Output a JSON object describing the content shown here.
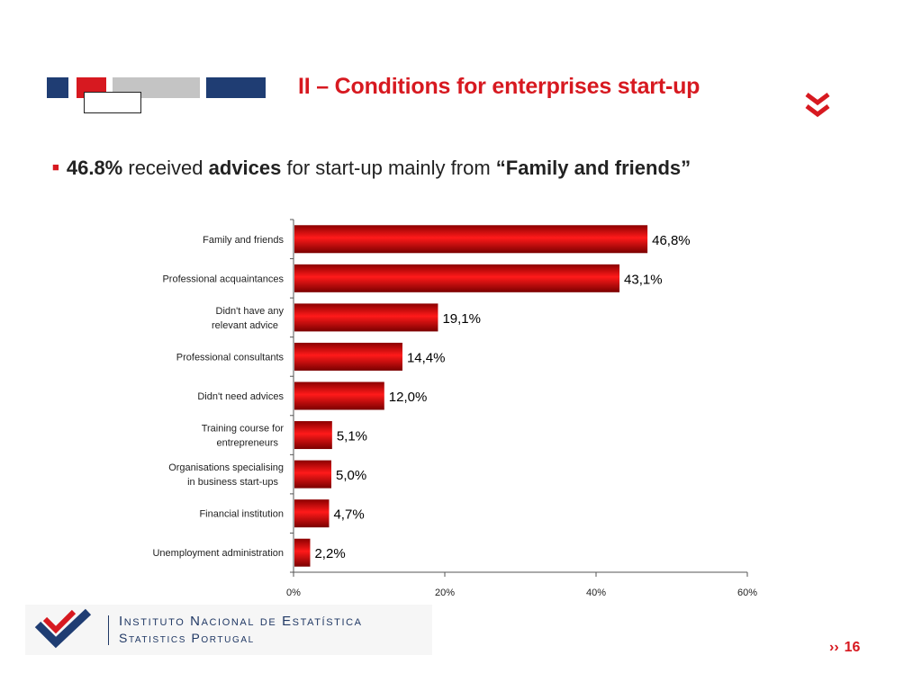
{
  "colors": {
    "accent": "#d71920",
    "navy": "#1f3d73",
    "bar_dark": "#8b0000",
    "bar_light": "#ff1a1a"
  },
  "slide": {
    "title": "II – Conditions for enterprises start-up",
    "headline": {
      "pct": "46.8%",
      "text1": " received ",
      "bold_word": "advices",
      "text2": " for start-up mainly from ",
      "quote": "“Family and friends”"
    },
    "page_number": "16",
    "nav_icon": "double-chevron-down-icon",
    "next_icon": "double-chevron-right-icon"
  },
  "logo": {
    "name": "Instituto Nacional de Estatística",
    "sub": "Statistics Portugal"
  },
  "chart_data": {
    "type": "bar",
    "orientation": "horizontal",
    "categories": [
      "Family and friends",
      "Professional acquaintances",
      "Didn't have any relevant advice",
      "Professional consultants",
      "Didn't need advices",
      "Training course for entrepreneurs",
      "Organisations specialising in business start-ups",
      "Financial institution",
      "Unemployment administration"
    ],
    "values": [
      46.8,
      43.1,
      19.1,
      14.4,
      12.0,
      5.1,
      5.0,
      4.7,
      2.2
    ],
    "data_labels": [
      "46,8%",
      "43,1%",
      "19,1%",
      "14,4%",
      "12,0%",
      "5,1%",
      "5,0%",
      "4,7%",
      "2,2%"
    ],
    "xlim": [
      0,
      60
    ],
    "xticks": [
      0,
      20,
      40,
      60
    ],
    "xtick_labels": [
      "0%",
      "20%",
      "40%",
      "60%"
    ],
    "title": "",
    "xlabel": "",
    "ylabel": "",
    "grid": false,
    "legend": "none"
  }
}
